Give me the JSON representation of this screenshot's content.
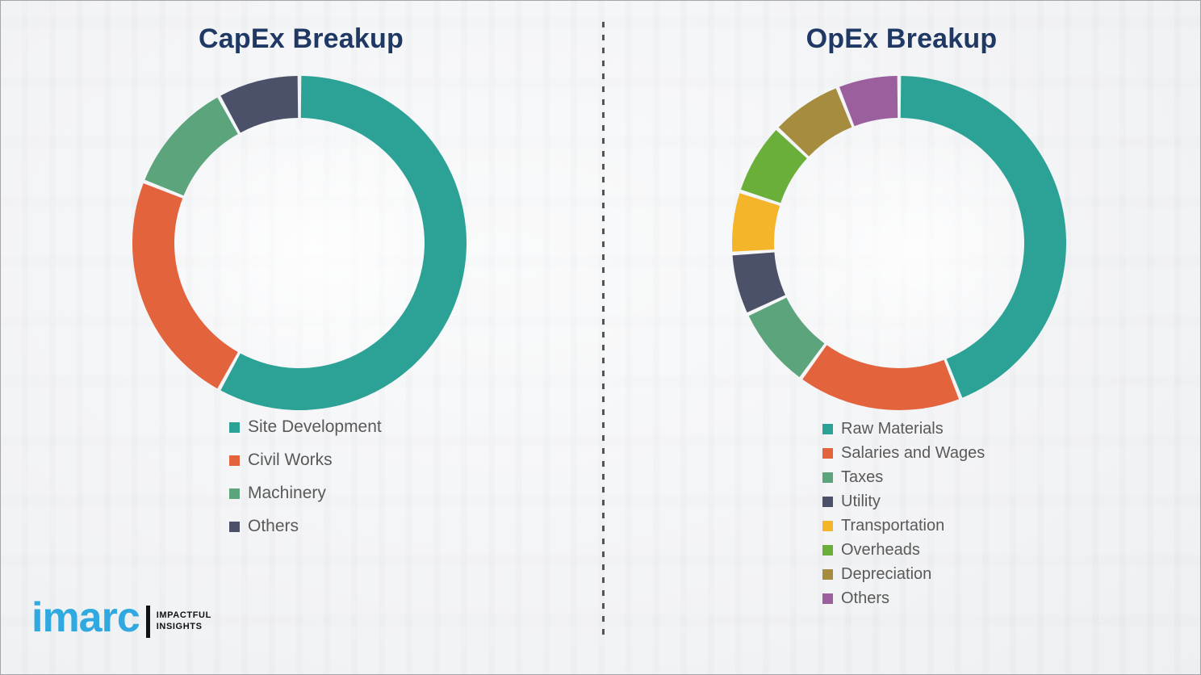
{
  "page": {
    "background_color": "#f1f2f4",
    "divider_color": "#555555",
    "title_color": "#1f3864",
    "legend_text_color": "#595959"
  },
  "chart_data": [
    {
      "type": "pie",
      "subtype": "donut",
      "title": "CapEx Breakup",
      "labels": [
        "Site Development",
        "Civil Works",
        "Machinery",
        "Others"
      ],
      "values": [
        58,
        23,
        11,
        8
      ],
      "unit": "%",
      "colors": [
        "#2BA295",
        "#E2633C",
        "#5BA47C",
        "#4A5168"
      ],
      "start_angle_deg": 0,
      "direction": "clockwise",
      "legend_position": "below-left",
      "data_labels_shown": false
    },
    {
      "type": "pie",
      "subtype": "donut",
      "title": "OpEx Breakup",
      "labels": [
        "Raw Materials",
        "Salaries and Wages",
        "Taxes",
        "Utility",
        "Transportation",
        "Overheads",
        "Depreciation",
        "Others"
      ],
      "values": [
        44,
        16,
        8,
        6,
        6,
        7,
        7,
        6
      ],
      "unit": "%",
      "colors": [
        "#2BA295",
        "#E2633C",
        "#5BA47C",
        "#4A5168",
        "#F5B52B",
        "#6BAF3B",
        "#A68C3F",
        "#9B5F9E"
      ],
      "start_angle_deg": 0,
      "direction": "clockwise",
      "legend_position": "below-left",
      "data_labels_shown": false
    }
  ],
  "branding": {
    "logo_text": "imarc",
    "logo_color": "#2fa9e0",
    "tagline_line1": "IMPACTFUL",
    "tagline_line2": "INSIGHTS"
  }
}
